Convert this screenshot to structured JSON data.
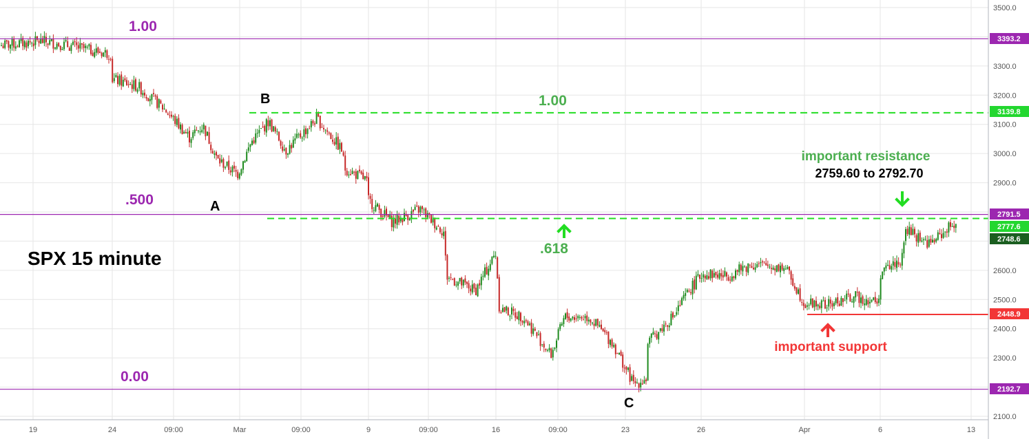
{
  "chart_data": {
    "type": "candlestick",
    "title": "SPX 15 minute",
    "ylim": [
      2090,
      3515
    ],
    "y_ticks": [
      "2100.0",
      "2200.0",
      "2300.0",
      "2400.0",
      "2500.0",
      "2600.0",
      "2700.0",
      "2800.0",
      "2900.0",
      "3000.0",
      "3100.0",
      "3200.0",
      "3300.0",
      "3400.0",
      "3500.0"
    ],
    "x_ticks": [
      "19",
      "24",
      "09:00",
      "Mar",
      "09:00",
      "9",
      "09:00",
      "16",
      "09:00",
      "23",
      "26",
      "Apr",
      "6",
      "13"
    ],
    "price_badges": [
      {
        "label": "3393.2",
        "value": 3393.2,
        "color": "#9c27b0"
      },
      {
        "label": "3139.8",
        "value": 3139.8,
        "color": "#23d72f"
      },
      {
        "label": "2791.5",
        "value": 2791.5,
        "color": "#9c27b0"
      },
      {
        "label": "2777.6",
        "value": 2777.6,
        "color": "#23d72f"
      },
      {
        "label": "2748.6",
        "value": 2748.6,
        "color": "#1b5e20"
      },
      {
        "label": "2448.9",
        "value": 2448.9,
        "color": "#f23636"
      },
      {
        "label": "2192.7",
        "value": 2192.7,
        "color": "#9c27b0"
      }
    ],
    "fib_levels_purple": [
      {
        "label": "1.00",
        "value": 3393.2
      },
      {
        "label": ".500",
        "value": 2791.5
      },
      {
        "label": "0.00",
        "value": 2192.7
      }
    ],
    "fib_levels_green": [
      {
        "label": "1.00",
        "value": 3139.8
      },
      {
        "label": ".618",
        "value": 2777.6
      }
    ],
    "support_level": 2448.9,
    "wave_labels": [
      "A",
      "B",
      "C"
    ],
    "annotations": {
      "resistance_title": "important resistance",
      "resistance_range": "2759.60 to 2792.70",
      "support_title": "important support"
    },
    "path_x": [
      0,
      60,
      95,
      130,
      163,
      163,
      200,
      240,
      275,
      295,
      315,
      345,
      365,
      390,
      415,
      460,
      497,
      500,
      532,
      535,
      570,
      610,
      645,
      648,
      690,
      720,
      725,
      760,
      800,
      820,
      855,
      890,
      920,
      940,
      940,
      980,
      1000,
      1020,
      1055,
      1090,
      1140,
      1165,
      1165,
      1200,
      1240,
      1278,
      1278,
      1310,
      1315,
      1350,
      1390
    ],
    "path_y": [
      3370,
      3385,
      3372,
      3355,
      3340,
      3255,
      3230,
      3150,
      3055,
      3095,
      2980,
      2930,
      3040,
      3110,
      3010,
      3120,
      3010,
      2950,
      2910,
      2840,
      2765,
      2810,
      2730,
      2580,
      2530,
      2660,
      2470,
      2440,
      2310,
      2440,
      2440,
      2350,
      2210,
      2230,
      2350,
      2450,
      2530,
      2590,
      2580,
      2620,
      2610,
      2500,
      2490,
      2480,
      2510,
      2490,
      2590,
      2640,
      2740,
      2690,
      2770
    ]
  }
}
